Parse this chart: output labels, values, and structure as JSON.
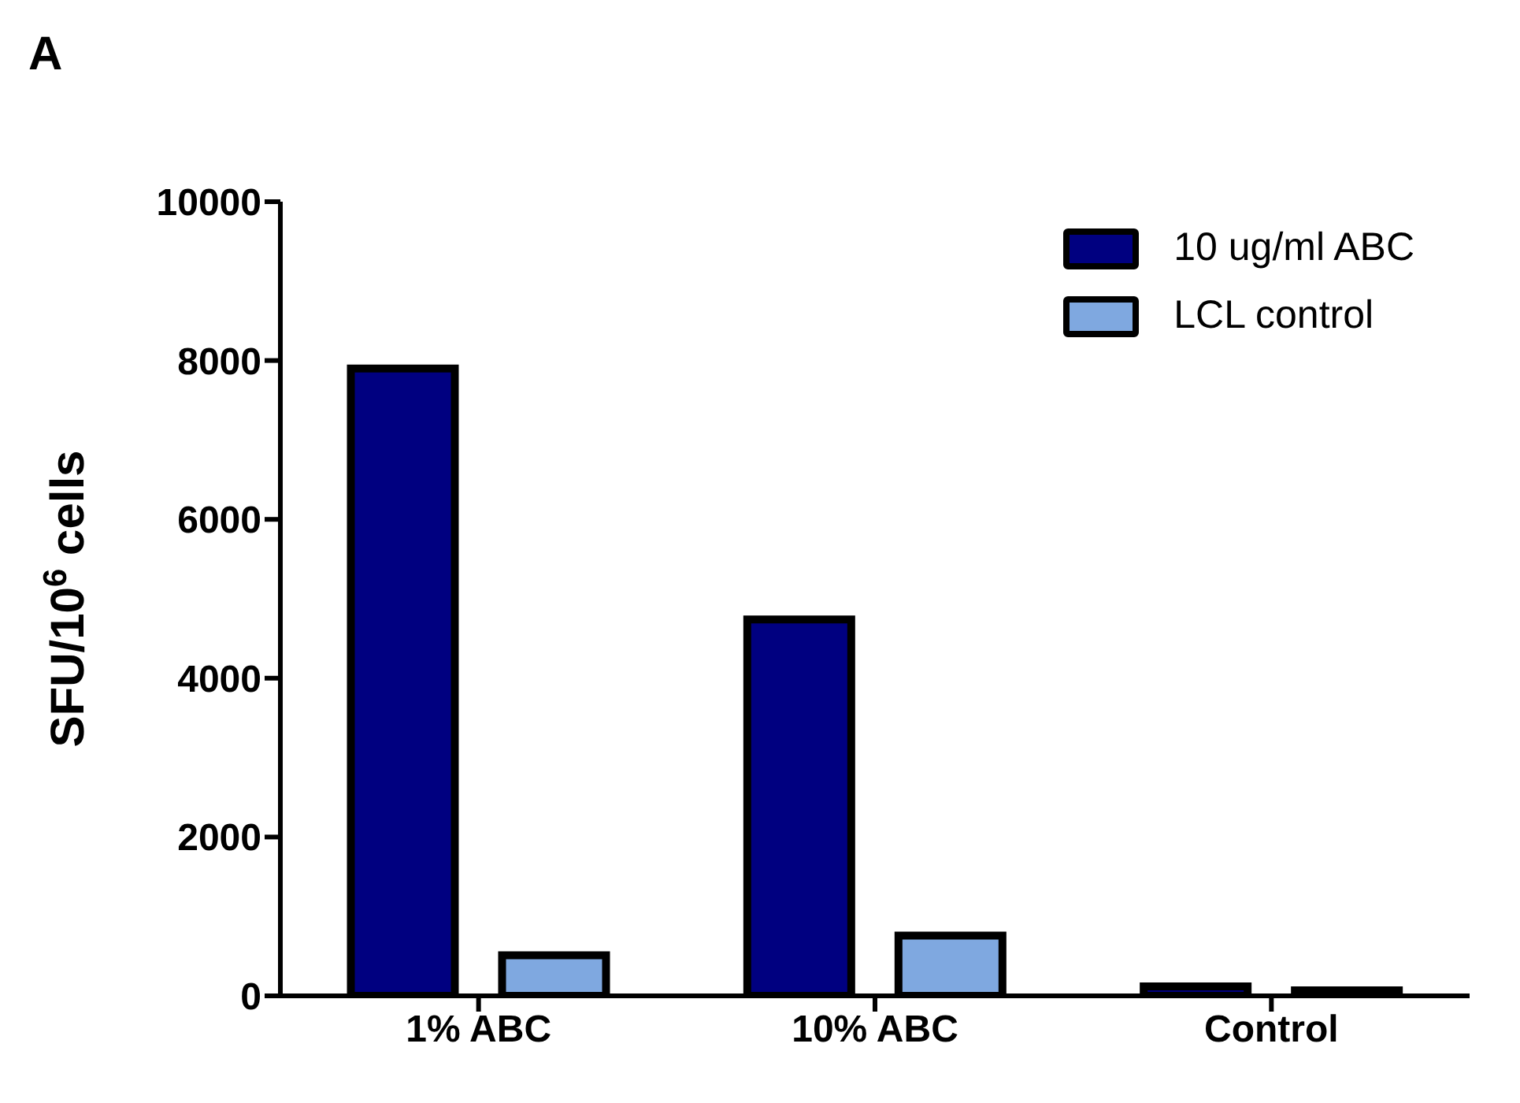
{
  "chart_data": {
    "type": "bar",
    "annotations": [
      "A"
    ],
    "ylabel": "SFU/10$^{6}$ cells",
    "categories": [
      "1% ABC",
      "10% ABC",
      "Control"
    ],
    "series": [
      {
        "name": "10 ug/ml ABC",
        "color": "#000080",
        "values": [
          7900,
          4740,
          120
        ]
      },
      {
        "name": "LCL control",
        "color": "#7fa8e0",
        "values": [
          510,
          760,
          70
        ]
      }
    ],
    "ylim": [
      0,
      10000
    ],
    "yticks": [
      0,
      2000,
      4000,
      6000,
      8000,
      10000
    ],
    "grid": false,
    "legend": "top right"
  }
}
